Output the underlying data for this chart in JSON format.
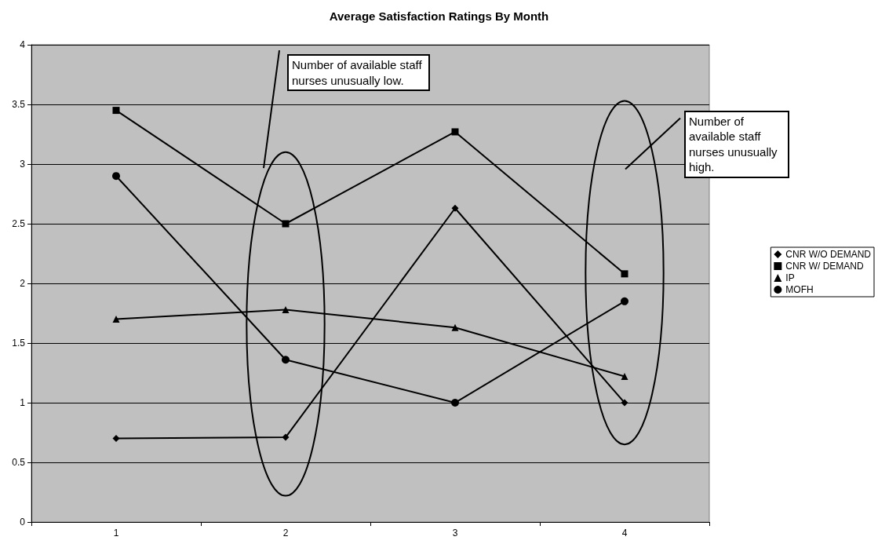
{
  "chart_data": {
    "type": "line",
    "title": "Average Satisfaction Ratings By Month",
    "categories": [
      "1",
      "2",
      "3",
      "4"
    ],
    "series": [
      {
        "name": "CNR W/O DEMAND",
        "color": "#000000",
        "marker": "diamond",
        "values": [
          0.7,
          0.71,
          2.63,
          1.0
        ]
      },
      {
        "name": "CNR W/ DEMAND",
        "color": "#000000",
        "marker": "square",
        "values": [
          3.45,
          2.5,
          3.27,
          2.08
        ]
      },
      {
        "name": "IP",
        "color": "#000000",
        "marker": "triangle",
        "values": [
          1.7,
          1.78,
          1.63,
          1.22
        ]
      },
      {
        "name": "MOFH",
        "color": "#000000",
        "marker": "circle",
        "values": [
          2.9,
          1.36,
          1.0,
          1.85
        ]
      }
    ],
    "ylim": [
      0,
      4
    ],
    "yticks": [
      0,
      0.5,
      1,
      1.5,
      2,
      2.5,
      3,
      3.5,
      4
    ],
    "grid": "y",
    "legend": "right",
    "annotations": [
      "Number of available staff nurses unusually low.",
      "Number of available staff nurses unusually high."
    ]
  }
}
